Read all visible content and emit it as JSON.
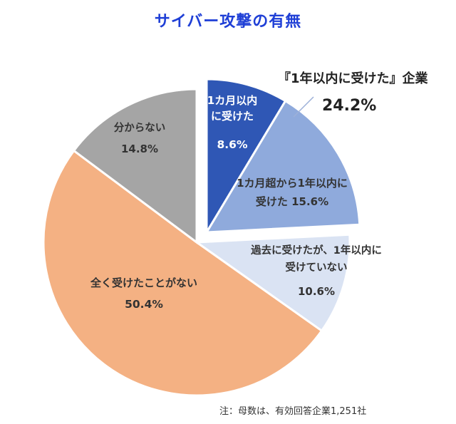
{
  "chart_data": {
    "type": "pie",
    "title": "サイバー攻撃の有無",
    "slices": [
      {
        "label_lines": [
          "1カ月以内",
          "に受けた"
        ],
        "value": 8.6,
        "value_text": "8.6%",
        "color": "#2f57b5",
        "exploded": true
      },
      {
        "label_lines": [
          "1カ月超から1年以内に",
          "受けた 15.6%"
        ],
        "value": 15.6,
        "value_text": "",
        "color": "#8faadc",
        "exploded": true
      },
      {
        "label_lines": [
          "過去に受けたが、1年以内に",
          "受けていない"
        ],
        "value": 10.6,
        "value_text": "10.6%",
        "color": "#dae3f3",
        "exploded": false
      },
      {
        "label_lines": [
          "全く受けたことがない"
        ],
        "value": 50.4,
        "value_text": "50.4%",
        "color": "#f4b183",
        "exploded": false
      },
      {
        "label_lines": [
          "分からない"
        ],
        "value": 14.8,
        "value_text": "14.8%",
        "color": "#a5a5a5",
        "exploded": false
      }
    ],
    "callout": {
      "label": "『1年以内に受けた』企業",
      "value": "24.2%"
    },
    "note": "注：母数は、有効回答企業1,251社"
  }
}
